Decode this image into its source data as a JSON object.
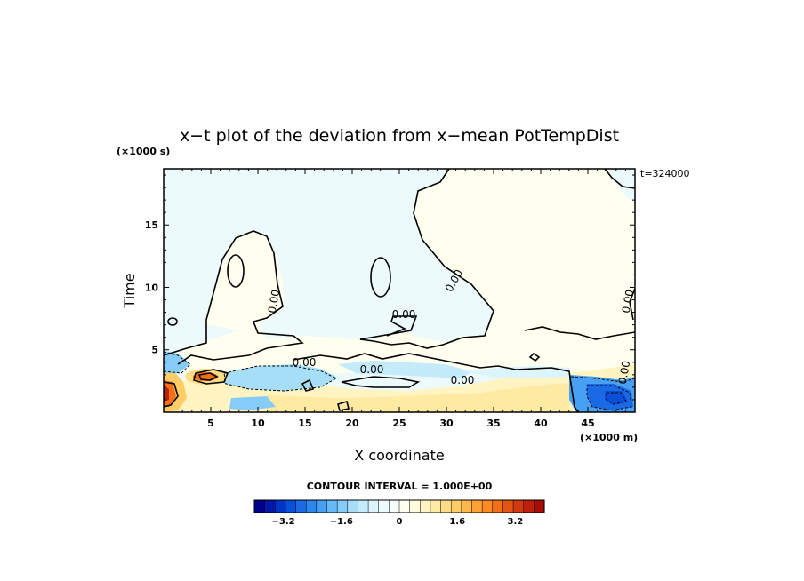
{
  "chart_data": {
    "type": "heatmap",
    "title": "x−t plot of the deviation from x−mean PotTempDist",
    "xlabel": "X coordinate",
    "ylabel": "Time",
    "x_unit": "(×1000 m)",
    "y_unit": "(×1000 s)",
    "time_stamp": "t=324000",
    "xlim": [
      0,
      50
    ],
    "ylim": [
      0,
      19.5
    ],
    "x_ticks": [
      "5",
      "10",
      "15",
      "20",
      "25",
      "30",
      "35",
      "40",
      "45"
    ],
    "y_ticks": [
      "5",
      "10",
      "15"
    ],
    "contour_interval_text": "CONTOUR INTERVAL = 1.000E+00",
    "contour_labels": [
      "0.00",
      "0.00",
      "0.00",
      "0.00",
      "0.00",
      "0.00",
      "0.00",
      "0.00"
    ],
    "colorbar": {
      "range": [
        -4.0,
        4.0
      ],
      "tick_labels": [
        "−3.2",
        "−1.6",
        "0",
        "1.6",
        "3.2"
      ],
      "tick_values": [
        -3.2,
        -1.6,
        0,
        1.6,
        3.2
      ],
      "colors": [
        "#00008b",
        "#0018a8",
        "#0033c6",
        "#0a4fd8",
        "#1a6ae6",
        "#2d85ee",
        "#48a0f4",
        "#66b8f7",
        "#86ccf8",
        "#a6def8",
        "#c3ebf9",
        "#dcf4fb",
        "#ecfafc",
        "#f6fdfd",
        "#fffff0",
        "#fffbdc",
        "#fff4c2",
        "#ffeaa4",
        "#ffdd86",
        "#ffcc66",
        "#ffb84c",
        "#ffa236",
        "#ff8a24",
        "#f47018",
        "#e45412",
        "#d23a0e",
        "#bc200a",
        "#a80a06"
      ]
    }
  }
}
